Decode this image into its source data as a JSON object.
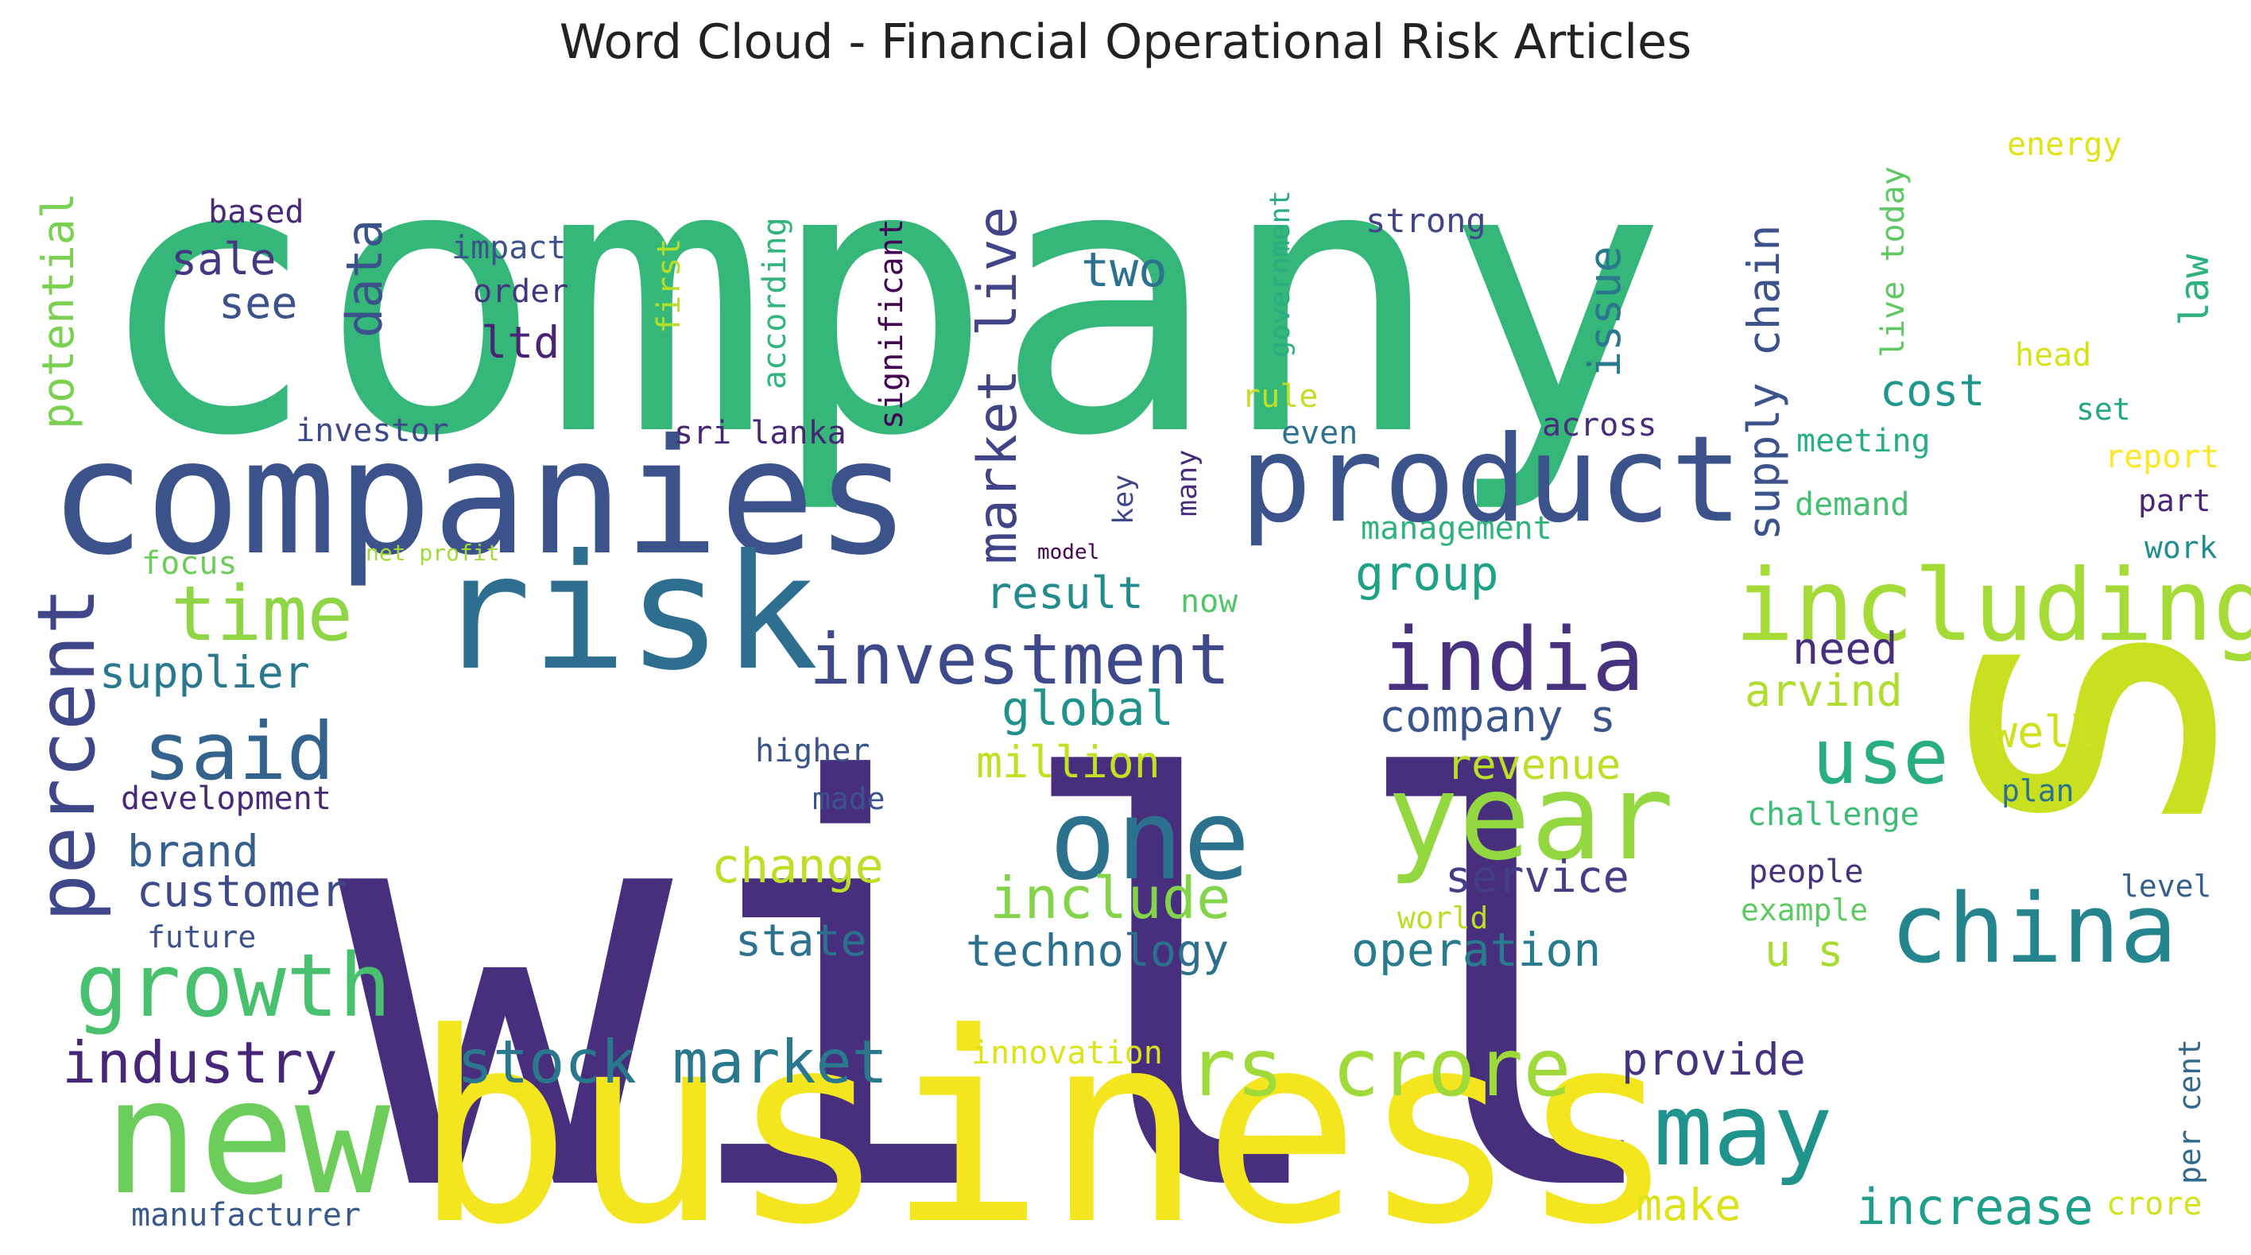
{
  "chart_data": {
    "type": "wordcloud",
    "title": "Word Cloud - Financial Operational Risk Articles",
    "colormap": "viridis",
    "words": [
      {
        "text": "company",
        "color": "#35b779"
      },
      {
        "text": "will",
        "color": "#472f7d"
      },
      {
        "text": "s",
        "color": "#c8e020"
      },
      {
        "text": "business",
        "color": "#f4e61e"
      },
      {
        "text": "companies",
        "color": "#3b528b"
      },
      {
        "text": "risk",
        "color": "#2e6e8e"
      },
      {
        "text": "product",
        "color": "#3b528b"
      },
      {
        "text": "new",
        "color": "#6ccd5a"
      },
      {
        "text": "including",
        "color": "#a5db36"
      },
      {
        "text": "year",
        "color": "#93d741"
      },
      {
        "text": "one",
        "color": "#2c728e"
      },
      {
        "text": "india",
        "color": "#46327e"
      },
      {
        "text": "china",
        "color": "#25858e"
      },
      {
        "text": "may",
        "color": "#20938c"
      },
      {
        "text": "rs crore",
        "color": "#9fda3a"
      },
      {
        "text": "growth",
        "color": "#48c16e"
      },
      {
        "text": "investment",
        "color": "#3e4989"
      },
      {
        "text": "said",
        "color": "#33638d"
      },
      {
        "text": "use",
        "color": "#29af7f"
      },
      {
        "text": "time",
        "color": "#8ed645"
      },
      {
        "text": "percent",
        "color": "#3f4788"
      },
      {
        "text": "market live",
        "color": "#414487"
      },
      {
        "text": "stock market",
        "color": "#2a788e"
      },
      {
        "text": "industry",
        "color": "#482677"
      },
      {
        "text": "supply chain",
        "color": "#3b528b"
      },
      {
        "text": "include",
        "color": "#84d44b"
      },
      {
        "text": "data",
        "color": "#3b528b"
      },
      {
        "text": "increase",
        "color": "#1f9e89"
      },
      {
        "text": "issue",
        "color": "#2a788e"
      },
      {
        "text": "operation",
        "color": "#287c8e"
      },
      {
        "text": "technology",
        "color": "#2d708e"
      },
      {
        "text": "global",
        "color": "#21918c"
      },
      {
        "text": "company s",
        "color": "#39558c"
      },
      {
        "text": "customer",
        "color": "#3e4a89"
      },
      {
        "text": "group",
        "color": "#1fa187"
      },
      {
        "text": "service",
        "color": "#433e85"
      },
      {
        "text": "state",
        "color": "#2c728e"
      },
      {
        "text": "potential",
        "color": "#7ad151"
      },
      {
        "text": "change",
        "color": "#bddf26"
      },
      {
        "text": "two",
        "color": "#2c718e"
      },
      {
        "text": "sale",
        "color": "#453781"
      },
      {
        "text": "million",
        "color": "#c2df23"
      },
      {
        "text": "provide",
        "color": "#46337f"
      },
      {
        "text": "supplier",
        "color": "#2a788e"
      },
      {
        "text": "result",
        "color": "#238a8d"
      },
      {
        "text": "cost",
        "color": "#1f978b"
      },
      {
        "text": "make",
        "color": "#dde318"
      },
      {
        "text": "brand",
        "color": "#355f8d"
      },
      {
        "text": "law",
        "color": "#2db27d"
      },
      {
        "text": "arvind",
        "color": "#b0dd2f"
      },
      {
        "text": "need",
        "color": "#46307e"
      },
      {
        "text": "well",
        "color": "#d0e11c"
      },
      {
        "text": "revenue",
        "color": "#bddf26"
      },
      {
        "text": "see",
        "color": "#3b528b"
      },
      {
        "text": "ltd",
        "color": "#482475"
      },
      {
        "text": "u s",
        "color": "#a8db34"
      },
      {
        "text": "manufacturer",
        "color": "#38598c"
      },
      {
        "text": "energy",
        "color": "#dfe318"
      },
      {
        "text": "strong",
        "color": "#414487"
      },
      {
        "text": "significant",
        "color": "#440154"
      },
      {
        "text": "according",
        "color": "#31b57b"
      },
      {
        "text": "government",
        "color": "#29af7f"
      },
      {
        "text": "impact",
        "color": "#3b528b"
      },
      {
        "text": "order",
        "color": "#453581"
      },
      {
        "text": "based",
        "color": "#482878"
      },
      {
        "text": "first",
        "color": "#b5de2b"
      },
      {
        "text": "live today",
        "color": "#5ec962"
      },
      {
        "text": "head",
        "color": "#d8e219"
      },
      {
        "text": "set",
        "color": "#22a884"
      },
      {
        "text": "report",
        "color": "#fde725"
      },
      {
        "text": "part",
        "color": "#482475"
      },
      {
        "text": "work",
        "color": "#228d8d"
      },
      {
        "text": "investor",
        "color": "#3e4989"
      },
      {
        "text": "sri lanka",
        "color": "#482677"
      },
      {
        "text": "rule",
        "color": "#c0df25"
      },
      {
        "text": "even",
        "color": "#2c718e"
      },
      {
        "text": "across",
        "color": "#472d7b"
      },
      {
        "text": "meeting",
        "color": "#29af7f"
      },
      {
        "text": "demand",
        "color": "#44bf70"
      },
      {
        "text": "management",
        "color": "#2fb47c"
      },
      {
        "text": "key",
        "color": "#3f4788"
      },
      {
        "text": "many",
        "color": "#472c7a"
      },
      {
        "text": "focus",
        "color": "#6ccd5a"
      },
      {
        "text": "net profit",
        "color": "#a0da39"
      },
      {
        "text": "model",
        "color": "#440154"
      },
      {
        "text": "now",
        "color": "#52c569"
      },
      {
        "text": "higher",
        "color": "#3b528b"
      },
      {
        "text": "development",
        "color": "#482878"
      },
      {
        "text": "made",
        "color": "#3b528b"
      },
      {
        "text": "challenge",
        "color": "#3dbc74"
      },
      {
        "text": "plan",
        "color": "#2c728e"
      },
      {
        "text": "people",
        "color": "#46327e"
      },
      {
        "text": "level",
        "color": "#355f8d"
      },
      {
        "text": "example",
        "color": "#5ec962"
      },
      {
        "text": "world",
        "color": "#b8de29"
      },
      {
        "text": "future",
        "color": "#3b528b"
      },
      {
        "text": "innovation",
        "color": "#dde318"
      },
      {
        "text": "per cent",
        "color": "#31688e"
      },
      {
        "text": "crore",
        "color": "#d2e21b"
      }
    ]
  }
}
